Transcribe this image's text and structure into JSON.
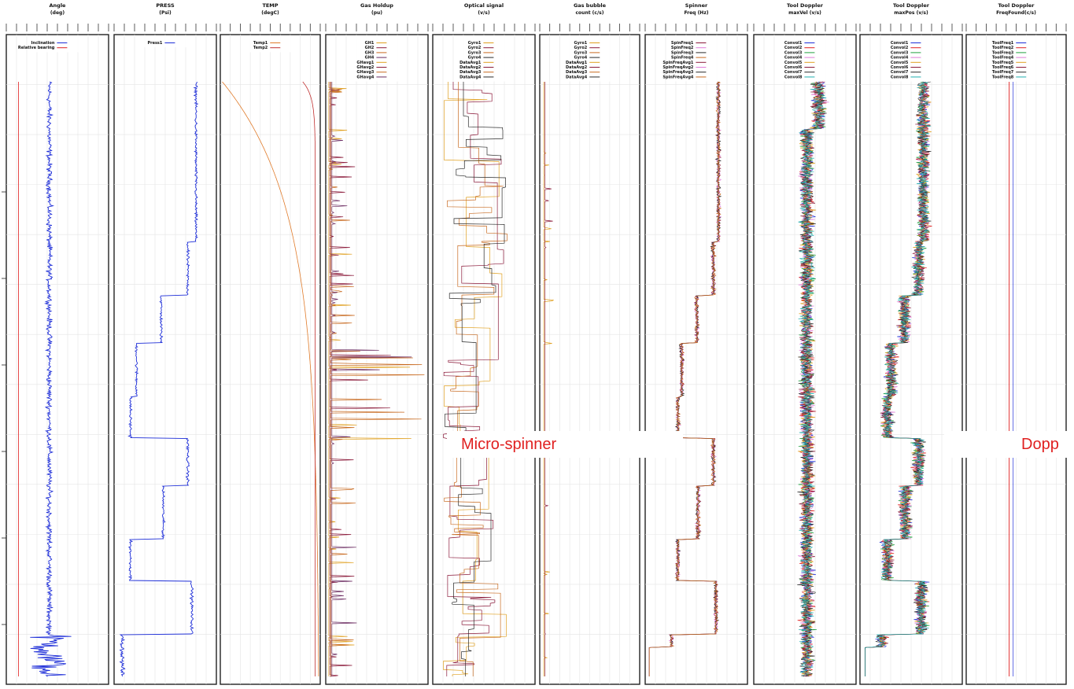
{
  "chart_data": {
    "type": "line",
    "log_kind": "multi-track well log",
    "depth_axis": "vertical, increasing downward",
    "grid": true,
    "tracks": [
      {
        "title": "Angle",
        "unit": "(deg)",
        "legend": [
          "Inclination",
          "Relative bearing"
        ],
        "colors": [
          "#1f2fd8",
          "#e02020"
        ],
        "pattern": "Inclination near-vertical trace with noisy excursions; large spread in lowest section"
      },
      {
        "title": "PRESS",
        "unit": "(Psi)",
        "legend": [
          "Press1"
        ],
        "colors": [
          "#1f2fd8"
        ],
        "pattern": "Stepwise pressure profile: drops at stations then recovers"
      },
      {
        "title": "TEMP",
        "unit": "(degC)",
        "legend": [
          "Temp1",
          "Temp2"
        ],
        "colors": [
          "#e07b2a",
          "#c03030"
        ],
        "pattern": "Temperature rises steeply near top then flattens toward a constant"
      },
      {
        "title": "Gas Holdup",
        "unit": "(pu)",
        "legend": [
          "GH1",
          "GH2",
          "GH3",
          "GH4",
          "GHavg1",
          "GHavg2",
          "GHavg3",
          "GHavg4"
        ],
        "colors": [
          "#e0a020",
          "#8b1a3a",
          "#c86a20",
          "#6a2a60",
          "#e0a020",
          "#8b1a3a",
          "#c86a20",
          "#6a2a60"
        ],
        "pattern": "Mostly zero with sharp horizontal spikes at bubbly stations"
      },
      {
        "title": "Optical signal",
        "unit": "(v/s)",
        "legend": [
          "Gyro1",
          "Gyro2",
          "Gyro3",
          "Gyro4",
          "DataAvg1",
          "DataAvg2",
          "DataAvg3",
          "DataAvg4"
        ],
        "colors": [
          "#e0a020",
          "#8b1a3a",
          "#c86a20",
          "#2a2a2a",
          "#e0a020",
          "#8b1a3a",
          "#c86a20",
          "#2a2a2a"
        ],
        "pattern": "Braided step traces drifting left-right across track"
      },
      {
        "title": "Gas bubble",
        "unit": "count (c/s)",
        "legend": [
          "Gyro1",
          "Gyro2",
          "Gyro3",
          "Gyro4",
          "DataAvg1",
          "DataAvg2",
          "DataAvg3",
          "DataAvg4"
        ],
        "colors": [
          "#e0a020",
          "#8b1a3a",
          "#c86a20",
          "#2a2a2a",
          "#e0a020",
          "#8b1a3a",
          "#c86a20",
          "#2a2a2a"
        ],
        "pattern": "Near-zero counts with rare small blips"
      },
      {
        "title": "Spinner",
        "unit": "Freq (Hz)",
        "legend": [
          "SpinFreq1",
          "SpinFreq2",
          "SpinFreq3",
          "SpinFreq4",
          "SpinFreqAvg1",
          "SpinFreqAvg2",
          "SpinFreqAvg3",
          "SpinFreqAvg4"
        ],
        "colors": [
          "#8b1a3a",
          "#e07bd8",
          "#2a2a2a",
          "#c86a20",
          "#8b1a3a",
          "#e07bd8",
          "#2a2a2a",
          "#c86a20"
        ],
        "pattern": "Stepwise frequency following pressure station pattern"
      },
      {
        "title": "Tool Doppler",
        "unit": "maxVel (v/s)",
        "legend": [
          "Convol1",
          "Convol2",
          "Convol3",
          "Convol4",
          "Convol5",
          "Convol6",
          "Convol7",
          "Convol8"
        ],
        "colors": [
          "#1f2fd8",
          "#e02020",
          "#20a040",
          "#e07bd8",
          "#e0a020",
          "#8b1a3a",
          "#2a2a2a",
          "#20b0b0"
        ],
        "pattern": "Dense multi-colored noisy band centered in track"
      },
      {
        "title": "Tool Doppler",
        "unit": "maxPos (v/s)",
        "legend": [
          "Convol1",
          "Convol2",
          "Convol3",
          "Convol4",
          "Convol5",
          "Convol6",
          "Convol7",
          "Convol8"
        ],
        "colors": [
          "#1f2fd8",
          "#e02020",
          "#20a040",
          "#e07bd8",
          "#e0a020",
          "#8b1a3a",
          "#2a2a2a",
          "#20b0b0"
        ],
        "pattern": "Noisy multi-colored band with step changes matching stations"
      },
      {
        "title": "Tool Doppler",
        "unit": "FreqFound(c/s)",
        "legend": [
          "ToolFreq1",
          "ToolFreq2",
          "ToolFreq3",
          "ToolFreq4",
          "ToolFreq5",
          "ToolFreq6",
          "ToolFreq7",
          "ToolFreq8"
        ],
        "colors": [
          "#1f2fd8",
          "#e02020",
          "#20a040",
          "#e07bd8",
          "#e0a020",
          "#8b1a3a",
          "#2a2a2a",
          "#20b0b0"
        ],
        "pattern": "Near-constant thin vertical lines"
      }
    ],
    "depth_ticks": [
      "",
      "",
      "",
      "",
      "",
      ""
    ]
  },
  "annotations": [
    {
      "text": "Micro-spinner",
      "color": "#e02020"
    },
    {
      "text": "Dopp",
      "color": "#e02020"
    }
  ]
}
